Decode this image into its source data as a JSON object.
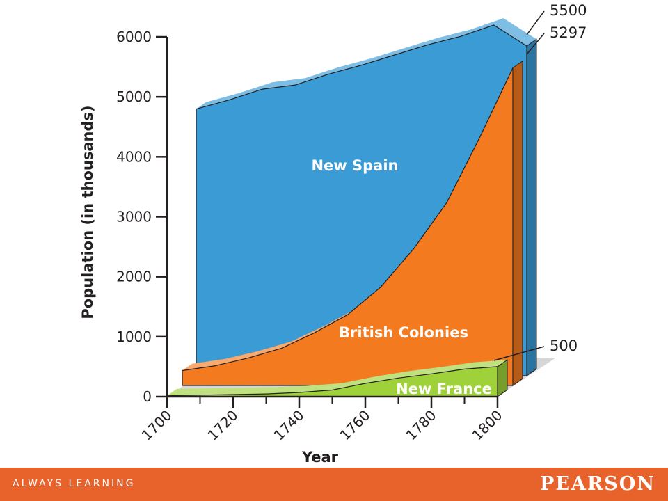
{
  "chart_data": {
    "type": "area",
    "stacked": false,
    "xlabel": "Year",
    "ylabel": "Population (in thousands)",
    "x_ticks": [
      "1700",
      "1720",
      "1740",
      "1760",
      "1780",
      "1800"
    ],
    "y_ticks": [
      "0",
      "1000",
      "2000",
      "3000",
      "4000",
      "5000",
      "6000"
    ],
    "ylim": [
      0,
      6000
    ],
    "xlim": [
      1700,
      1800
    ],
    "x": [
      1700,
      1710,
      1720,
      1730,
      1740,
      1750,
      1760,
      1770,
      1780,
      1790,
      1800
    ],
    "series": [
      {
        "name": "New Spain",
        "color": "#3a9bd5",
        "values": [
          4450,
          4600,
          4780,
          4850,
          5030,
          5180,
          5350,
          5520,
          5660,
          5850,
          5500
        ]
      },
      {
        "name": "British Colonies",
        "color": "#f47a20",
        "values": [
          250,
          330,
          460,
          620,
          880,
          1180,
          1640,
          2280,
          3050,
          4140,
          5297
        ]
      },
      {
        "name": "New France",
        "color": "#9ed13a",
        "values": [
          15,
          25,
          35,
          45,
          70,
          110,
          220,
          310,
          380,
          460,
          500
        ]
      }
    ],
    "callouts": [
      {
        "text": "5500",
        "series": "New Spain",
        "value": 5500
      },
      {
        "text": "5297",
        "series": "British Colonies",
        "value": 5297
      },
      {
        "text": "500",
        "series": "New France",
        "value": 500
      }
    ]
  },
  "footer": {
    "tagline": "ALWAYS LEARNING",
    "brand": "PEARSON"
  }
}
